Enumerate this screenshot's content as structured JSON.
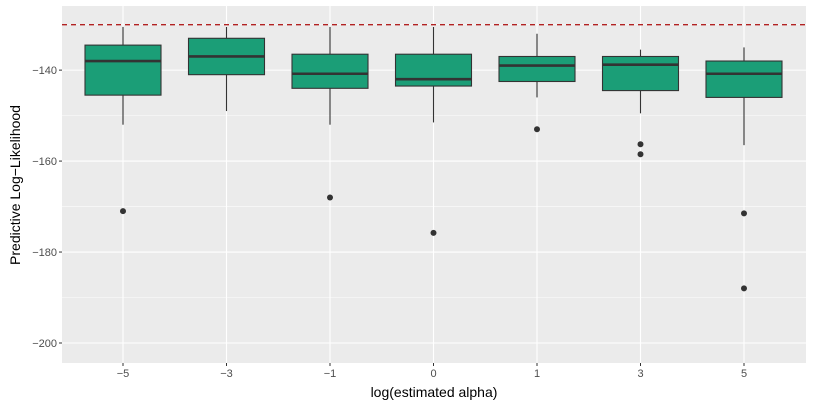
{
  "chart_data": {
    "type": "box",
    "xlabel": "log(estimated alpha)",
    "ylabel": "Predictive Log−Likelihood",
    "categories": [
      "−5",
      "−3",
      "−1",
      "0",
      "1",
      "3",
      "5"
    ],
    "ylim": [
      -204.4,
      -125.9
    ],
    "y_ticks": [
      -200,
      -180,
      -160,
      -140
    ],
    "y_tick_labels": [
      "−200",
      "−180",
      "−160",
      "−140"
    ],
    "grid": true,
    "reference_line": {
      "y": -130,
      "style": "dashed",
      "color": "#B22222"
    },
    "boxes": [
      {
        "category": "−5",
        "q1": -145.5,
        "median": -138.0,
        "q3": -134.5,
        "whisker_low": -152.0,
        "whisker_high": -130.5,
        "outliers": [
          -171.0
        ]
      },
      {
        "category": "−3",
        "q1": -141.0,
        "median": -137.0,
        "q3": -133.0,
        "whisker_low": -149.0,
        "whisker_high": -130.5,
        "outliers": []
      },
      {
        "category": "−1",
        "q1": -144.0,
        "median": -140.8,
        "q3": -136.5,
        "whisker_low": -152.0,
        "whisker_high": -130.5,
        "outliers": [
          -168.0
        ]
      },
      {
        "category": "0",
        "q1": -143.5,
        "median": -142.0,
        "q3": -136.5,
        "whisker_low": -151.5,
        "whisker_high": -130.5,
        "outliers": [
          -175.8
        ]
      },
      {
        "category": "1",
        "q1": -142.5,
        "median": -139.0,
        "q3": -137.0,
        "whisker_low": -146.0,
        "whisker_high": -132.0,
        "outliers": [
          -153.0
        ]
      },
      {
        "category": "3",
        "q1": -144.5,
        "median": -138.8,
        "q3": -137.0,
        "whisker_low": -149.5,
        "whisker_high": -135.5,
        "outliers": [
          -156.3,
          -158.5
        ]
      },
      {
        "category": "5",
        "q1": -146.0,
        "median": -140.8,
        "q3": -138.0,
        "whisker_low": -156.5,
        "whisker_high": -135.0,
        "outliers": [
          -171.5,
          -188.0
        ]
      }
    ],
    "colors": {
      "box_fill": "#1B9E77",
      "box_stroke": "#333333",
      "panel_bg": "#EBEBEB",
      "grid_major": "#FFFFFF",
      "outlier": "#333333"
    }
  }
}
